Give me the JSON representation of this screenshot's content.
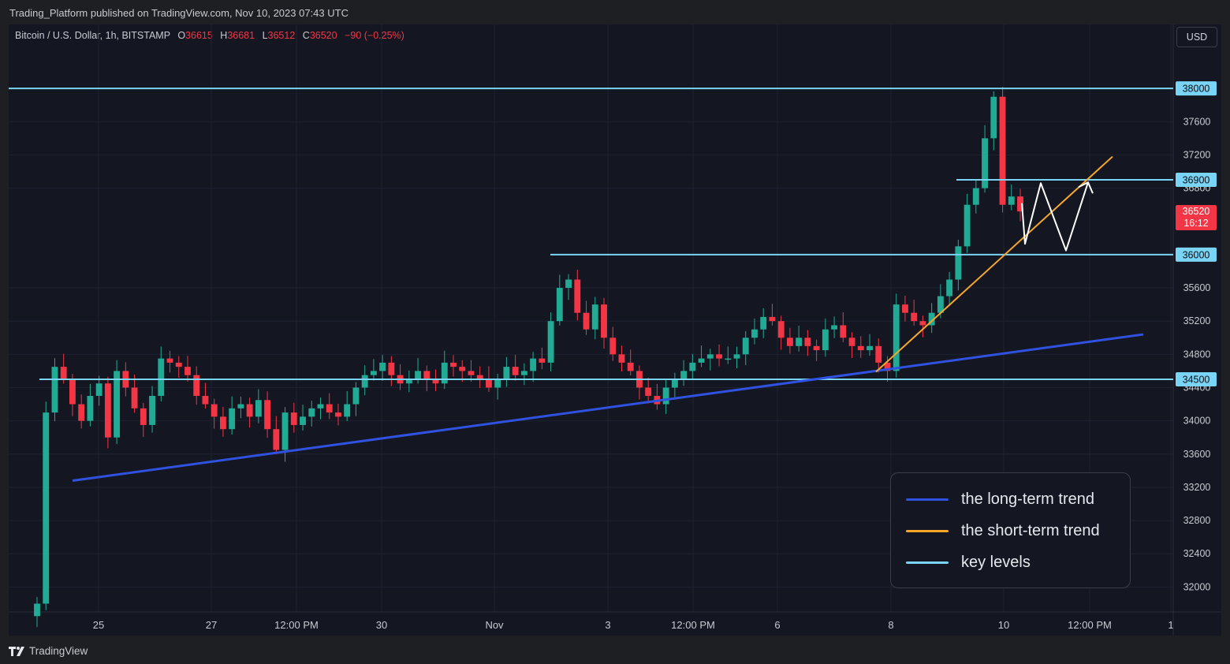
{
  "header": {
    "publisher": "Trading_Platform published on TradingView.com, Nov 10, 2023 07:43 UTC"
  },
  "symbol": {
    "name": "Bitcoin / U.S. Dollar, 1h, BITSTAMP",
    "o_label": "O",
    "o": "36615",
    "h_label": "H",
    "h": "36681",
    "l_label": "L",
    "l": "36512",
    "c_label": "C",
    "c": "36520",
    "change": "−90 (−0.25%)"
  },
  "currency_button": "USD",
  "footer": {
    "brand": "TradingView"
  },
  "current_price": {
    "value": "36520",
    "timer": "16:12",
    "color": "#f23645"
  },
  "legend": {
    "items": [
      {
        "label": "the long-term trend",
        "color": "#2f52e0"
      },
      {
        "label": "the short-term trend",
        "color": "#f7a72a"
      },
      {
        "label": "key levels",
        "color": "#7ad4f5"
      }
    ]
  },
  "chart_data": {
    "type": "candlestick",
    "ylim": [
      31700,
      38400
    ],
    "y_ticks": [
      32000,
      32400,
      32800,
      33200,
      33600,
      34000,
      34400,
      34800,
      35200,
      35600,
      36800,
      37200,
      37600
    ],
    "x_ticks": [
      "25",
      "27",
      "12:00 PM",
      "30",
      "Nov",
      "3",
      "12:00 PM",
      "6",
      "8",
      "10",
      "12:00 PM",
      "1"
    ],
    "key_levels": [
      38000,
      36900,
      36000,
      34500
    ],
    "long_term_trend": {
      "from": [
        "Oct 24",
        33280
      ],
      "to": [
        "Nov 11",
        35040
      ]
    },
    "short_term_trend": {
      "from": [
        "Nov 7",
        34590
      ],
      "to": [
        "Nov 11",
        37180
      ]
    },
    "projection_path": [
      36620,
      36130,
      36860,
      36050,
      36870
    ],
    "series": [
      {
        "name": "BTC/USD 1h close (approx.)",
        "values": [
          31800,
          34100,
          34650,
          34500,
          34200,
          34000,
          34300,
          34450,
          33800,
          34600,
          34400,
          34150,
          33950,
          34300,
          34750,
          34700,
          34650,
          34550,
          34300,
          34200,
          34050,
          33900,
          34150,
          34200,
          34050,
          34250,
          33900,
          33650,
          34100,
          33950,
          34050,
          34150,
          34200,
          34100,
          34050,
          34200,
          34400,
          34550,
          34600,
          34700,
          34550,
          34450,
          34500,
          34600,
          34500,
          34450,
          34700,
          34650,
          34600,
          34550,
          34500,
          34400,
          34500,
          34650,
          34550,
          34600,
          34750,
          34700,
          35200,
          35600,
          35700,
          35300,
          35100,
          35400,
          35000,
          34800,
          34700,
          34600,
          34400,
          34300,
          34200,
          34400,
          34500,
          34600,
          34700,
          34750,
          34800,
          34750,
          34750,
          34800,
          35000,
          35100,
          35250,
          35200,
          35000,
          34900,
          35000,
          34900,
          34850,
          35100,
          35150,
          35000,
          34900,
          34850,
          34900,
          34700,
          34600,
          35400,
          35300,
          35200,
          35150,
          35300,
          35500,
          35700,
          36100,
          36600,
          36800,
          37400,
          37900,
          36600,
          36700,
          36520
        ]
      }
    ]
  }
}
